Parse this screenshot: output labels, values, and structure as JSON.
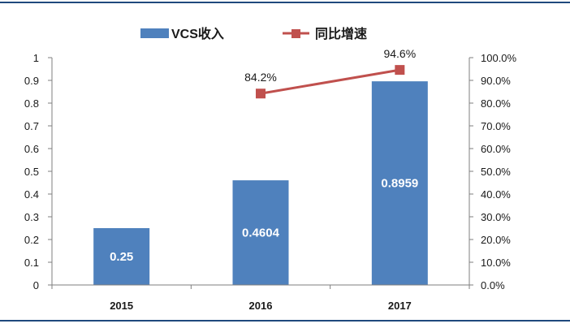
{
  "colors": {
    "bar": "#4f81bd",
    "line": "#c0504d",
    "frame": "#1f497d"
  },
  "chart_data": {
    "type": "bar",
    "categories": [
      "2015",
      "2016",
      "2017"
    ],
    "series": [
      {
        "name": "VCS收入",
        "type": "bar",
        "axis": "left",
        "values": [
          0.25,
          0.4604,
          0.8959
        ],
        "data_labels": [
          "0.25",
          "0.4604",
          "0.8959"
        ]
      },
      {
        "name": "同比增速",
        "type": "line",
        "axis": "right",
        "values": [
          null,
          84.2,
          94.6
        ],
        "data_labels": [
          "",
          "84.2%",
          "94.6%"
        ]
      }
    ],
    "y_left": {
      "lim": [
        0,
        1
      ],
      "ticks": [
        "0",
        "0.1",
        "0.2",
        "0.3",
        "0.4",
        "0.5",
        "0.6",
        "0.7",
        "0.8",
        "0.9",
        "1"
      ]
    },
    "y_right": {
      "lim": [
        0,
        100
      ],
      "ticks": [
        "0.0%",
        "10.0%",
        "20.0%",
        "30.0%",
        "40.0%",
        "50.0%",
        "60.0%",
        "70.0%",
        "80.0%",
        "90.0%",
        "100.0%"
      ]
    },
    "legend_position": "top-center",
    "grid": false
  }
}
